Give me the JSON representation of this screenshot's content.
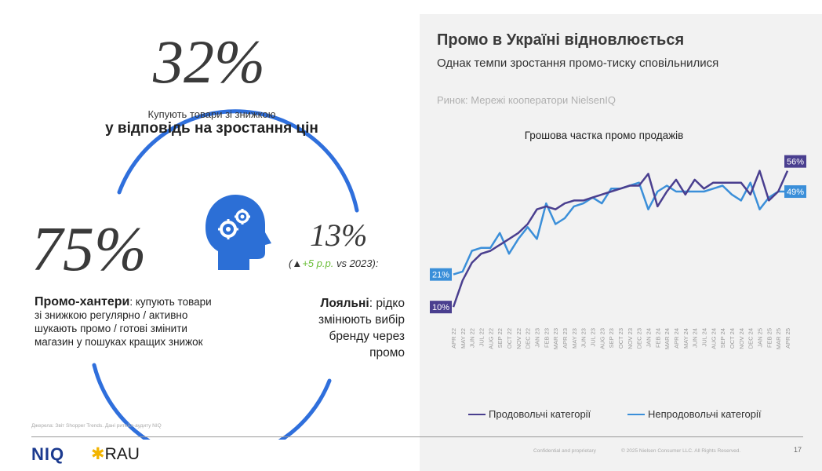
{
  "left": {
    "stat_32": {
      "value": "32%",
      "line1": "Купують товари зі знижкою",
      "line2": "у відповідь на зростання цін"
    },
    "stat_75": {
      "value": "75%",
      "bold": "Промо-хантери",
      "rest": ": купують товари зі знижкою регулярно / активно шукають промо / готові змінити магазин у пошуках кращих знижок"
    },
    "stat_13": {
      "value": "13%",
      "sub_open": "(",
      "sub_arrow": "▲",
      "sub_change": "+5 p.p.",
      "sub_rest": " vs 2023):",
      "bold": "Лояльні",
      "rest": ": рідко змінюють вибір бренду через промо"
    },
    "icon": "brain-gears-icon"
  },
  "right": {
    "title": "Промо в Україні відновлюється",
    "subtitle": "Однак темпи зростання промо-тиску сповільнилися",
    "market": "Ринок: Мережі кооператори NielsenIQ"
  },
  "footer": {
    "sources": "Джерела: Звіт Shopper Trends. Дані ритейл-аудиту NIQ",
    "logo_niq": "NIQ",
    "logo_star": "✱",
    "logo_rau": "RAU",
    "confidential": "Confidential and proprietary",
    "copyright": "© 2025 Nielsen Consumer LLC. All Rights Reserved.",
    "page": "17"
  },
  "colors": {
    "food": "#4a3f8f",
    "nonfood": "#3b8fd9",
    "ring": "#2f6fdc",
    "icon_bg": "#2c6fd6"
  },
  "chart_data": {
    "type": "line",
    "title": "Грошова частка промо продажів",
    "x": [
      "APR 22",
      "MAY 22",
      "JUN 22",
      "JUL 22",
      "AUG 22",
      "SEP 22",
      "OCT 22",
      "NOV 22",
      "DEC 22",
      "JAN 23",
      "FEB 23",
      "MAR 23",
      "APR 23",
      "MAY 23",
      "JUN 23",
      "JUL 23",
      "AUG 23",
      "SEP 23",
      "OCT 23",
      "NOV 23",
      "DEC 23",
      "JAN 24",
      "FEB 24",
      "MAR 24",
      "APR 24",
      "MAY 24",
      "JUN 24",
      "JUL 24",
      "AUG 24",
      "SEP 24",
      "OCT 24",
      "NOV 24",
      "DEC 24",
      "JAN 25",
      "FEB 25",
      "MAR 25",
      "APR 25"
    ],
    "ylim": [
      5,
      62
    ],
    "series": [
      {
        "name": "Продовольчі категорії",
        "color": "#4a3f8f",
        "start_label": "10%",
        "end_label": "56%",
        "values": [
          10,
          19,
          25,
          28,
          29,
          31,
          33,
          35,
          38,
          43,
          44,
          43,
          45,
          46,
          46,
          47,
          48,
          49,
          50,
          51,
          51,
          55,
          44,
          49,
          53,
          48,
          53,
          50,
          52,
          52,
          52,
          52,
          48,
          56,
          46,
          49,
          56
        ]
      },
      {
        "name": "Непродовольчі категорії",
        "color": "#3b8fd9",
        "start_label": "21%",
        "end_label": "49%",
        "values": [
          21,
          22,
          29,
          30,
          30,
          35,
          28,
          33,
          37,
          33,
          45,
          38,
          40,
          44,
          45,
          47,
          45,
          50,
          50,
          51,
          52,
          43,
          49,
          51,
          49,
          49,
          49,
          49,
          50,
          51,
          48,
          46,
          52,
          43,
          47,
          49,
          49
        ]
      }
    ],
    "grid": false,
    "legend": "bottom"
  }
}
